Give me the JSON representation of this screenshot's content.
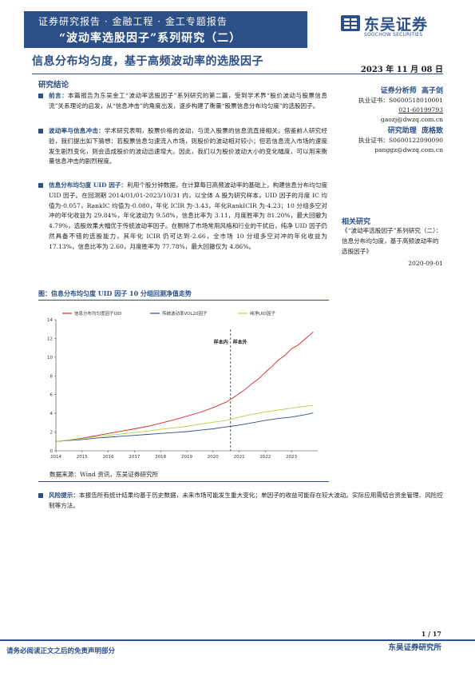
{
  "header": {
    "series_line": "证券研究报告 · 金融工程 · 金工专题报告",
    "series_title": "“波动率选股因子”系列研究（二）",
    "logo_cn": "东吴证券",
    "logo_en": "SOOCHOW SECURITIES",
    "brand_color": "#2b4f86"
  },
  "report": {
    "title": "信息分布均匀度，基于高频波动率的选股因子",
    "date": "2023 年 11 月 08 日",
    "conclusion_heading": "研究结论"
  },
  "analysts": [
    {
      "role": "证券分析师",
      "name": "高子剑",
      "cert": "执业证书：S0600518010001",
      "phone": "021-60199793",
      "email": "gaozj@dwzq.com.cn"
    },
    {
      "role": "研究助理",
      "name": "庞格致",
      "cert": "执业证书：S0600122090090",
      "phone": "",
      "email": "panggz@dwzq.com.cn"
    }
  ],
  "related": {
    "heading": "相关研究",
    "text": "《“波动率选股因子”系列研究（二）：信息分布均匀度，基于高频波动率的选股因子》",
    "date": "2020-09-01"
  },
  "paragraphs": [
    {
      "label": "前言：",
      "text": "本篇报告为东吴金工“波动率选股因子”系列研究的第二篇，受到学术界“股价波动与股票信息流”关系理论的启发，从“信息冲击”的角度出发，逐步构建了衡量“股票信息分布均匀度”的选股因子。"
    },
    {
      "label": "波动率与信息冲击：",
      "text": "学术研究表明，股票价格的波动，与流入股票的信息流直接相关。借鉴前人研究经验，我们提出如下猜想：若股票信息匀速流入市场，则股价的波动相对较小；但若信息流入市场的速度发生剧烈变化，则会造成股价的波动迅速增大。因此，我们以为股价波动大小的变化幅度，可以用来衡量信息冲击的剧烈程度。"
    },
    {
      "label": "信息分布均匀度 UID 因子：",
      "text": "利用个股分钟数据，在计算每日高频波动率的基础上，构建信息分布均匀度 UID 因子。在回测期 2014/01/01-2023/10/31 内，以全体 A 股为研究样本，UID 因子的月度 IC 均值为-0.057，RankIC 均值为-0.080，年化 ICIR 为-3.43，年化RankICIR 为-4.23；10 分组多空对冲的年化收益为 29.84%，年化波动为 9.58%，信息比率为 3.11，月度胜率为 81.20%，最大回撤为 4.79%，选股效果大幅优于传统波动率因子。在剔除了市场常用风格和行业的干扰后，纯净 UID 因子仍然具备不错的选股能力，其年化 ICIR 仍可达到-2.66，全市场 10 分组多空对冲的年化收益为 17.13%，信息比率为 2.60，月度胜率为 77.78%，最大回撤仅为 4.86%。"
    }
  ],
  "figure": {
    "heading": "图：信息分布均匀度 UID 因子 10 分组回测净值走势",
    "source": "数据来源：Wind 资讯，东吴证券研究所"
  },
  "risk": {
    "label": "风险提示：",
    "text": "本报告所有统计结果均基于历史数据，未来市场可能发生重大变化；单因子的收益可能存在较大波动。实际应用需结合资金管理、风险控制等方法。"
  },
  "footer": {
    "page": "1 / 17",
    "disclaimer": "请务必阅读正文之后的免责声明部分",
    "org": "东吴证券研究所"
  },
  "chart_data": {
    "type": "line",
    "xlabel": "",
    "ylabel": "",
    "ylim": [
      0,
      14
    ],
    "yticks": [
      0,
      2,
      4,
      6,
      8,
      10,
      12,
      14
    ],
    "xlim": [
      2014,
      2024
    ],
    "xticks": [
      "2014",
      "2015",
      "2016",
      "2017",
      "2018",
      "2019",
      "2020",
      "2021",
      "2022",
      "2023"
    ],
    "grid": false,
    "legend_position": "top",
    "split_year": 2020.67,
    "annotations": [
      "样本内",
      "样本外"
    ],
    "series": [
      {
        "name": "信息分布均匀度因子UID",
        "color": "#d62728",
        "x": [
          2014.0,
          2014.5,
          2015.0,
          2015.5,
          2016.0,
          2016.5,
          2017.0,
          2017.5,
          2018.0,
          2018.5,
          2019.0,
          2019.5,
          2020.0,
          2020.5,
          2020.67,
          2021.0,
          2021.25,
          2021.5,
          2021.75,
          2022.0,
          2022.25,
          2022.5,
          2022.75,
          2023.0,
          2023.25,
          2023.5,
          2023.75,
          2023.83
        ],
        "y": [
          1.0,
          1.15,
          1.35,
          1.6,
          1.85,
          2.1,
          2.35,
          2.6,
          2.95,
          3.3,
          3.7,
          4.1,
          4.6,
          5.2,
          5.5,
          6.1,
          6.6,
          7.2,
          7.7,
          8.4,
          9.0,
          9.7,
          10.2,
          10.9,
          11.3,
          11.9,
          12.5,
          12.7
        ]
      },
      {
        "name": "传统波动率VOL20因子",
        "color": "#2b4f86",
        "x": [
          2014.0,
          2014.5,
          2015.0,
          2015.5,
          2016.0,
          2016.5,
          2017.0,
          2017.5,
          2018.0,
          2018.5,
          2019.0,
          2019.5,
          2020.0,
          2020.5,
          2020.67,
          2021.0,
          2021.5,
          2022.0,
          2022.5,
          2023.0,
          2023.5,
          2023.83
        ],
        "y": [
          1.0,
          1.1,
          1.2,
          1.35,
          1.45,
          1.55,
          1.65,
          1.75,
          1.85,
          1.95,
          2.05,
          2.2,
          2.35,
          2.55,
          2.6,
          2.75,
          3.0,
          3.25,
          3.45,
          3.6,
          3.85,
          4.05
        ]
      },
      {
        "name": "纯净UID因子",
        "color": "#b7d142",
        "x": [
          2014.0,
          2014.5,
          2015.0,
          2015.5,
          2016.0,
          2016.5,
          2017.0,
          2017.5,
          2018.0,
          2018.5,
          2019.0,
          2019.5,
          2020.0,
          2020.5,
          2020.67,
          2021.0,
          2021.5,
          2022.0,
          2022.5,
          2023.0,
          2023.5,
          2023.83
        ],
        "y": [
          1.0,
          1.15,
          1.3,
          1.5,
          1.65,
          1.8,
          1.95,
          2.1,
          2.3,
          2.45,
          2.6,
          2.85,
          3.05,
          3.25,
          3.35,
          3.6,
          3.9,
          4.15,
          4.35,
          4.55,
          4.75,
          4.85
        ]
      }
    ]
  }
}
